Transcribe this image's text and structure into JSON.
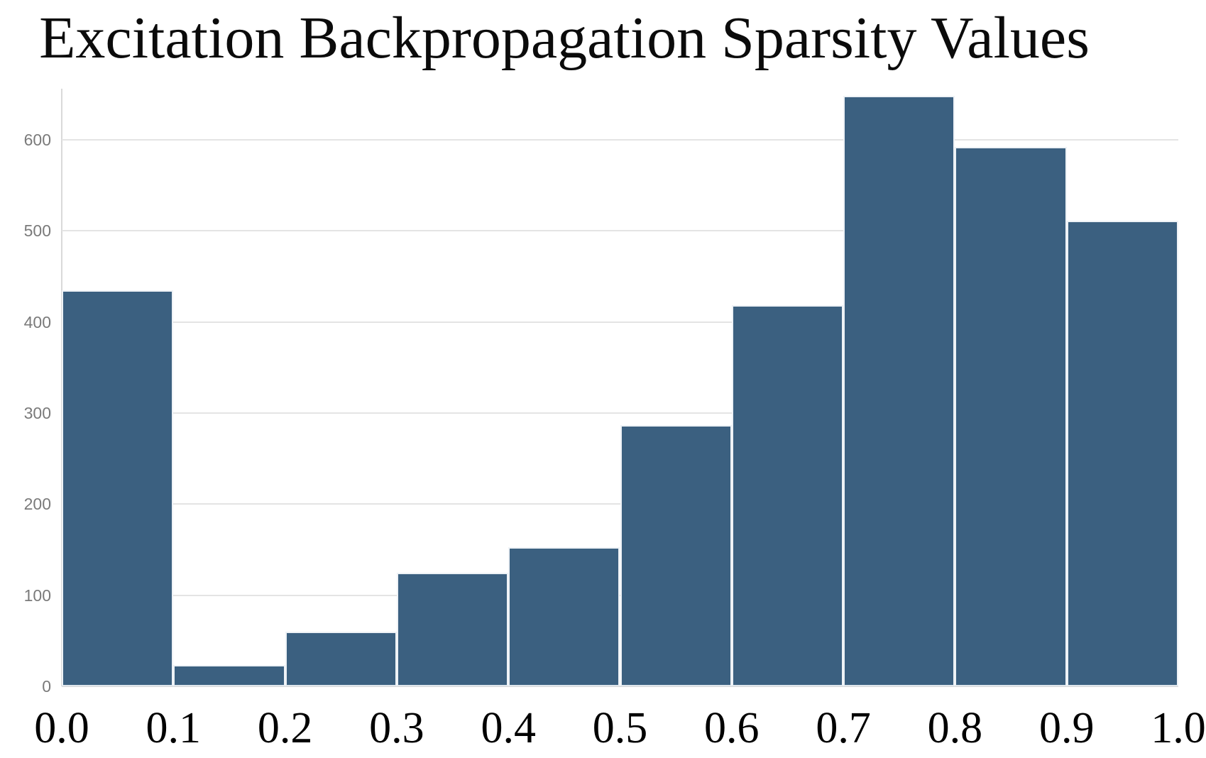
{
  "title": "Excitation Backpropagation Sparsity Values",
  "chart_data": {
    "type": "bar",
    "subtype": "histogram",
    "title": "Excitation Backpropagation Sparsity Values",
    "xlabel": "",
    "ylabel": "",
    "bin_edges": [
      0.0,
      0.1,
      0.2,
      0.3,
      0.4,
      0.5,
      0.6,
      0.7,
      0.8,
      0.9,
      1.0
    ],
    "categories": [
      "0.0-0.1",
      "0.1-0.2",
      "0.2-0.3",
      "0.3-0.4",
      "0.4-0.5",
      "0.5-0.6",
      "0.6-0.7",
      "0.7-0.8",
      "0.8-0.9",
      "0.9-1.0"
    ],
    "values": [
      435,
      23,
      60,
      125,
      153,
      287,
      418,
      648,
      592,
      511
    ],
    "x_tick_labels": [
      "0.0",
      "0.1",
      "0.2",
      "0.3",
      "0.4",
      "0.5",
      "0.6",
      "0.7",
      "0.8",
      "0.9",
      "1.0"
    ],
    "y_tick_values": [
      0,
      100,
      200,
      300,
      400,
      500,
      600
    ],
    "xlim": [
      0.0,
      1.0
    ],
    "ylim": [
      0,
      656
    ],
    "grid": true,
    "legend": false,
    "colors": {
      "bar_fill": "#3b6080",
      "bar_stroke": "#eef2f6",
      "gridline": "#e4e4e4",
      "axis_line": "#d9d9d9",
      "y_tick_text": "#7a7a7a",
      "x_tick_text": "#000000",
      "title_text": "#0b0b0b",
      "background": "#ffffff"
    }
  }
}
